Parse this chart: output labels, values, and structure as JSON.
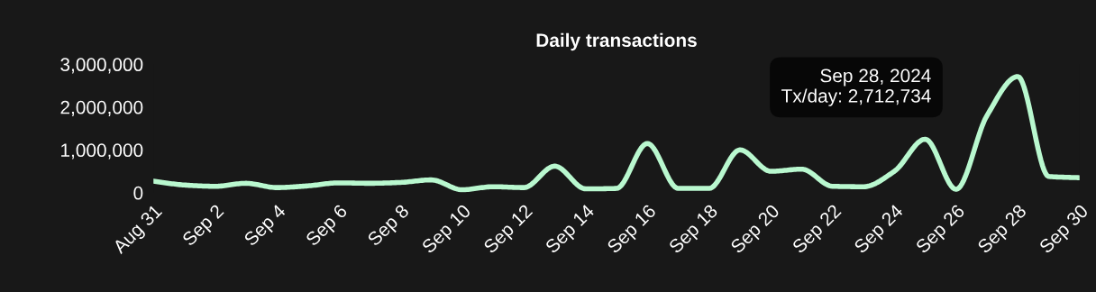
{
  "chart_data": {
    "type": "line",
    "title": "Daily transactions",
    "x": [
      "2024-08-31",
      "2024-09-01",
      "2024-09-02",
      "2024-09-03",
      "2024-09-04",
      "2024-09-05",
      "2024-09-06",
      "2024-09-07",
      "2024-09-08",
      "2024-09-09",
      "2024-09-10",
      "2024-09-11",
      "2024-09-12",
      "2024-09-13",
      "2024-09-14",
      "2024-09-15",
      "2024-09-16",
      "2024-09-17",
      "2024-09-18",
      "2024-09-19",
      "2024-09-20",
      "2024-09-21",
      "2024-09-22",
      "2024-09-23",
      "2024-09-24",
      "2024-09-25",
      "2024-09-26",
      "2024-09-27",
      "2024-09-28",
      "2024-09-29",
      "2024-09-30"
    ],
    "series": [
      {
        "color": "#b9f8cf",
        "values": [
          270000,
          180000,
          150000,
          220000,
          120000,
          160000,
          230000,
          220000,
          240000,
          300000,
          70000,
          140000,
          120000,
          620000,
          90000,
          100000,
          1150000,
          100000,
          100000,
          1000000,
          500000,
          550000,
          150000,
          140000,
          500000,
          1250000,
          80000,
          1800000,
          2712734,
          380000,
          350000
        ]
      }
    ],
    "xlim": [
      "2024-08-31",
      "2024-09-30"
    ],
    "xticks": [
      {
        "value": "2024-08-31",
        "label": "Aug 31"
      },
      {
        "value": "2024-09-02",
        "label": "Sep 2"
      },
      {
        "value": "2024-09-04",
        "label": "Sep 4"
      },
      {
        "value": "2024-09-06",
        "label": "Sep 6"
      },
      {
        "value": "2024-09-08",
        "label": "Sep 8"
      },
      {
        "value": "2024-09-10",
        "label": "Sep 10"
      },
      {
        "value": "2024-09-12",
        "label": "Sep 12"
      },
      {
        "value": "2024-09-14",
        "label": "Sep 14"
      },
      {
        "value": "2024-09-16",
        "label": "Sep 16"
      },
      {
        "value": "2024-09-18",
        "label": "Sep 18"
      },
      {
        "value": "2024-09-20",
        "label": "Sep 20"
      },
      {
        "value": "2024-09-22",
        "label": "Sep 22"
      },
      {
        "value": "2024-09-24",
        "label": "Sep 24"
      },
      {
        "value": "2024-09-26",
        "label": "Sep 26"
      },
      {
        "value": "2024-09-28",
        "label": "Sep 28"
      },
      {
        "value": "2024-09-30",
        "label": "Sep 30"
      }
    ],
    "ylim": [
      0,
      3000000
    ],
    "yticks": [
      {
        "value": 0,
        "label": "0"
      },
      {
        "value": 1000000,
        "label": "1,000,000"
      },
      {
        "value": 2000000,
        "label": "2,000,000"
      },
      {
        "value": 3000000,
        "label": "3,000,000"
      }
    ],
    "grid": false,
    "legend": false,
    "marker": "none",
    "line_style": "solid",
    "annotations": [
      "Sep 28, 2024\nTx/day: 2,712,734"
    ]
  }
}
